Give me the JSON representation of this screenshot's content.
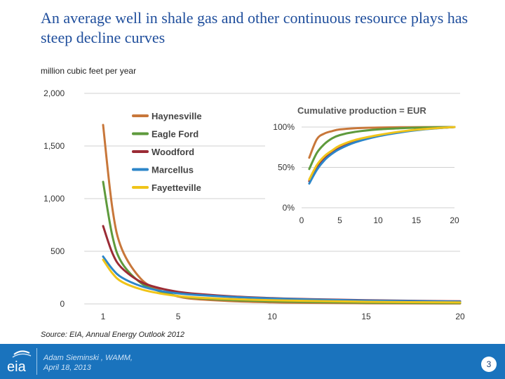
{
  "slide": {
    "title": "An average well in shale gas and other continuous resource plays has steep decline curves",
    "unit_label": "million cubic feet per year",
    "source": "Source:  EIA, Annual Energy Outlook 2012",
    "presenter_line1": "Adam Sieminski , WAMM,",
    "presenter_line2": "April 18, 2013",
    "page_number": "3",
    "logo_text": "eia"
  },
  "chart_data": [
    {
      "type": "line",
      "title": "",
      "xlabel": "",
      "ylabel": "million cubic feet per year",
      "xlim": [
        0,
        20
      ],
      "ylim": [
        0,
        2000
      ],
      "x_ticks": [
        {
          "v": 1,
          "label": "1"
        },
        {
          "v": 5,
          "label": "5"
        },
        {
          "v": 10,
          "label": "10"
        },
        {
          "v": 15,
          "label": "15"
        },
        {
          "v": 20,
          "label": "20"
        }
      ],
      "y_ticks": [
        {
          "v": 0,
          "label": "0"
        },
        {
          "v": 500,
          "label": "500"
        },
        {
          "v": 1000,
          "label": "1,000"
        },
        {
          "v": 1500,
          "label": "1,500"
        },
        {
          "v": 2000,
          "label": "2,000"
        }
      ],
      "grid": true,
      "legend": "top-left",
      "x": [
        1,
        1.5,
        2,
        3,
        4,
        5,
        6,
        8,
        10,
        12,
        15,
        20
      ],
      "series": [
        {
          "name": "Haynesville",
          "color": "#c8773a",
          "values": [
            1700,
            900,
            520,
            240,
            130,
            70,
            45,
            25,
            15,
            10,
            6,
            4
          ]
        },
        {
          "name": "Eagle Ford",
          "color": "#5e9a3c",
          "values": [
            1160,
            640,
            390,
            200,
            120,
            75,
            55,
            35,
            25,
            18,
            12,
            8
          ]
        },
        {
          "name": "Woodford",
          "color": "#9b2b35",
          "values": [
            740,
            480,
            340,
            210,
            150,
            115,
            95,
            70,
            55,
            45,
            35,
            25
          ]
        },
        {
          "name": "Marcellus",
          "color": "#2d86c9",
          "values": [
            450,
            330,
            250,
            170,
            125,
            100,
            85,
            65,
            52,
            42,
            32,
            22
          ]
        },
        {
          "name": "Fayetteville",
          "color": "#f0c419",
          "values": [
            420,
            290,
            210,
            140,
            100,
            75,
            60,
            45,
            35,
            28,
            20,
            14
          ]
        }
      ]
    },
    {
      "type": "line",
      "title": "Cumulative production = EUR",
      "xlabel": "",
      "ylabel": "",
      "xlim": [
        0,
        20
      ],
      "ylim": [
        0,
        100
      ],
      "x_ticks": [
        {
          "v": 0,
          "label": "0"
        },
        {
          "v": 5,
          "label": "5"
        },
        {
          "v": 10,
          "label": "10"
        },
        {
          "v": 15,
          "label": "15"
        },
        {
          "v": 20,
          "label": "20"
        }
      ],
      "y_ticks": [
        {
          "v": 0,
          "label": "0%"
        },
        {
          "v": 50,
          "label": "50%"
        },
        {
          "v": 100,
          "label": "100%"
        }
      ],
      "grid": true,
      "x": [
        1,
        2,
        3,
        4,
        5,
        7,
        10,
        13,
        16,
        20
      ],
      "series": [
        {
          "name": "Haynesville",
          "color": "#c8773a",
          "values": [
            62,
            85,
            92,
            95,
            97,
            98.5,
            99.3,
            99.7,
            99.9,
            100
          ]
        },
        {
          "name": "Eagle Ford",
          "color": "#5e9a3c",
          "values": [
            48,
            68,
            79,
            86,
            90,
            94,
            97,
            98.5,
            99.5,
            100
          ]
        },
        {
          "name": "Woodford",
          "color": "#9b2b35",
          "values": [
            33,
            50,
            61,
            68,
            74,
            82,
            89,
            94,
            97.5,
            100
          ]
        },
        {
          "name": "Marcellus",
          "color": "#2d86c9",
          "values": [
            30,
            47,
            59,
            67,
            73,
            81,
            88.5,
            93.5,
            97,
            100
          ]
        },
        {
          "name": "Fayetteville",
          "color": "#f0c419",
          "values": [
            35,
            53,
            64,
            71,
            77,
            84,
            90,
            94.5,
            97.5,
            100
          ]
        }
      ]
    }
  ]
}
